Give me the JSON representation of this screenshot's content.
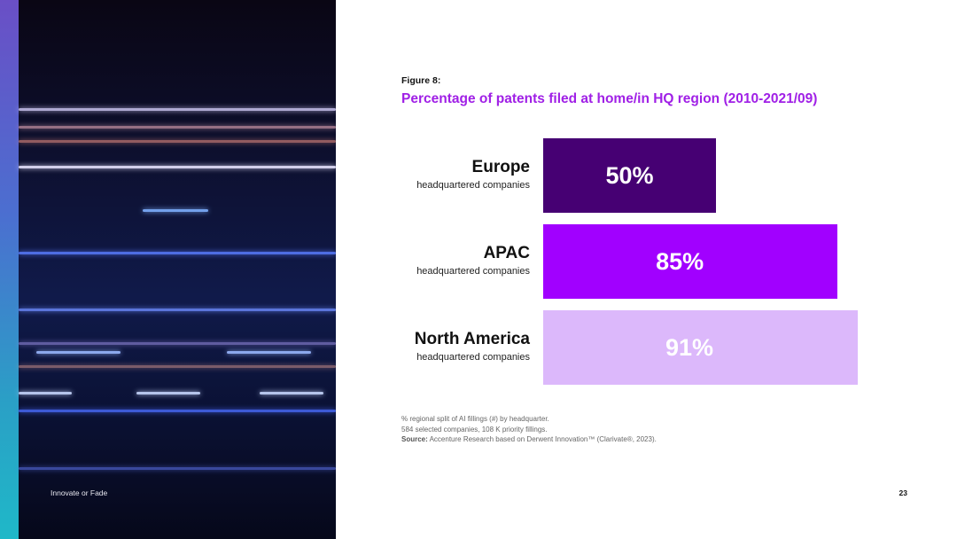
{
  "footer": {
    "title": "Innovate or Fade",
    "page_number": "23"
  },
  "figure_label": "Figure 8:",
  "colors": {
    "accent": "#a020e6",
    "bar_dark": "#460073",
    "bar_mid": "#a100ff",
    "bar_light": "#dcb8fb"
  },
  "chart_data": {
    "type": "bar",
    "orientation": "horizontal",
    "title": "Percentage of patents filed at home/in HQ region (2010-2021/09)",
    "xlim": [
      0,
      100
    ],
    "categories": [
      {
        "name": "Europe",
        "sub": "headquartered companies"
      },
      {
        "name": "APAC",
        "sub": "headquartered companies"
      },
      {
        "name": "North America",
        "sub": "headquartered companies"
      }
    ],
    "values": [
      50,
      85,
      91
    ],
    "value_labels": [
      "50%",
      "85%",
      "91%"
    ],
    "bar_colors": [
      "#460073",
      "#a100ff",
      "#dcb8fb"
    ]
  },
  "notes": {
    "line1": "% regional split of AI fillings (#) by headquarter.",
    "line2": "584 selected companies, 108 K priority fillings.",
    "source_label": "Source:",
    "source_text": " Accenture Research based on Derwent Innovation™ (Clarivate®, 2023)."
  }
}
